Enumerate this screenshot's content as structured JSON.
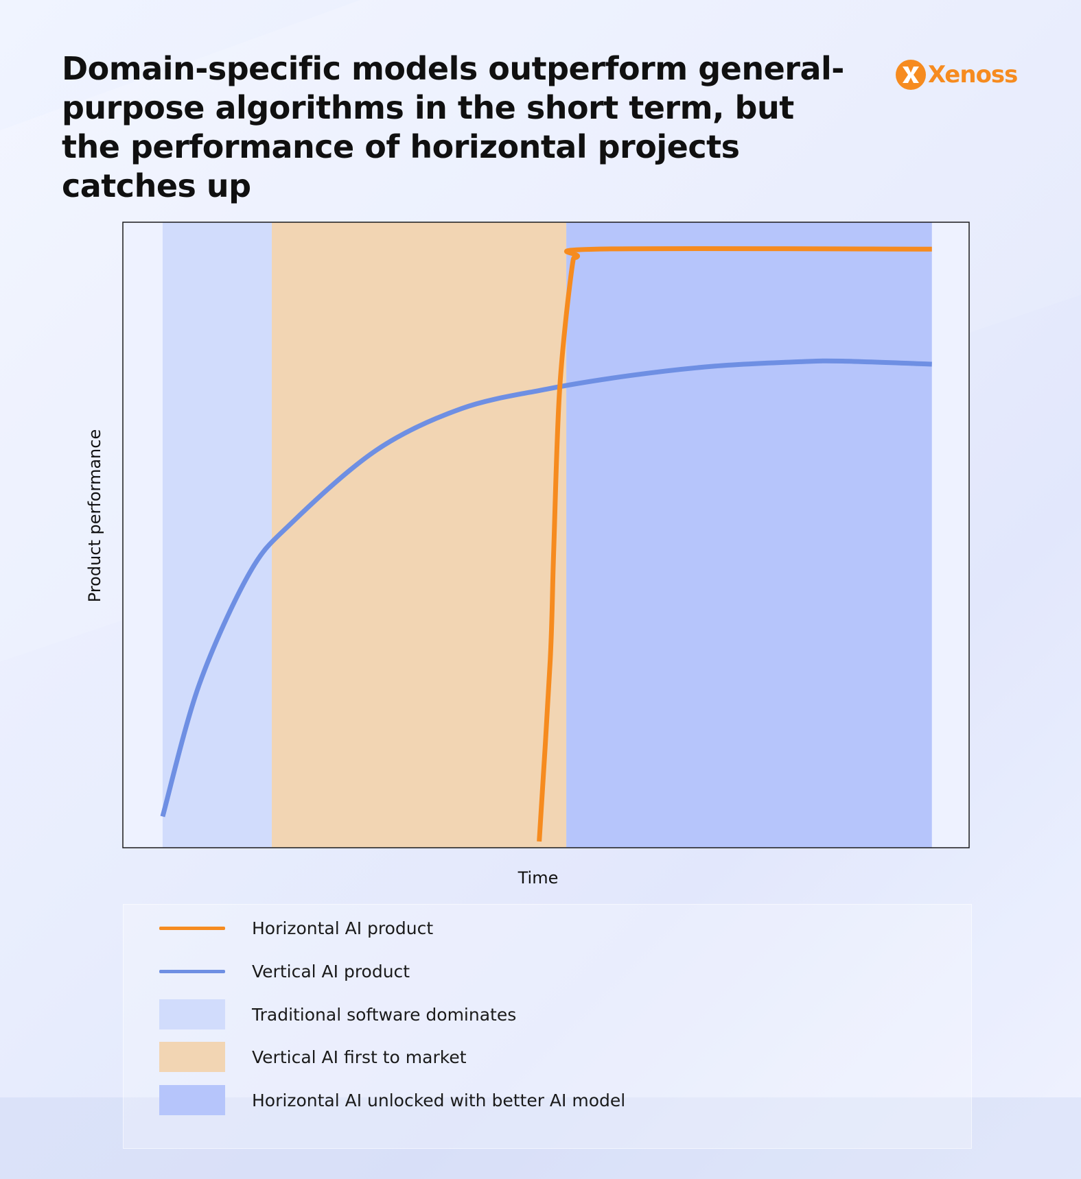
{
  "page": {
    "title": "Domain-specific models outperform general-purpose algorithms in the short term, but the performance of horizontal projects catches up",
    "logo_text": "Xenoss"
  },
  "colors": {
    "brand_orange": "#f68b1f",
    "horizontal_line": "#f68b1f",
    "vertical_line": "#6e8fe3",
    "traditional_region": "#d1dcfc",
    "vertical_first_region": "#f2d5b3",
    "horizontal_unlocked_region": "#b6c5fb"
  },
  "chart_data": {
    "type": "line",
    "xlabel": "Time",
    "ylabel": "Product performance",
    "xlim": [
      0,
      1
    ],
    "ylim": [
      0,
      1
    ],
    "grid": false,
    "show_ticks": false,
    "regions": [
      {
        "name": "Traditional software dominates",
        "start": 0.047,
        "end": 0.176,
        "color": "#d1dcfc"
      },
      {
        "name": "Vertical AI first to market",
        "start": 0.176,
        "end": 0.524,
        "color": "#f2d5b3"
      },
      {
        "name": "Horizontal AI unlocked with better AI model",
        "start": 0.524,
        "end": 0.956,
        "color": "#b6c5fb"
      }
    ],
    "series": [
      {
        "name": "Horizontal AI product",
        "color": "#f68b1f",
        "points": [
          [
            0.492,
            0.01
          ],
          [
            0.505,
            0.3
          ],
          [
            0.509,
            0.47
          ],
          [
            0.516,
            0.73
          ],
          [
            0.53,
            0.92
          ],
          [
            0.537,
            0.945
          ],
          [
            0.56,
            0.957
          ],
          [
            0.956,
            0.957
          ]
        ]
      },
      {
        "name": "Vertical AI product",
        "color": "#6e8fe3",
        "points": [
          [
            0.047,
            0.05
          ],
          [
            0.09,
            0.26
          ],
          [
            0.15,
            0.44
          ],
          [
            0.2,
            0.52
          ],
          [
            0.3,
            0.636
          ],
          [
            0.4,
            0.702
          ],
          [
            0.5,
            0.733
          ],
          [
            0.6,
            0.755
          ],
          [
            0.7,
            0.77
          ],
          [
            0.8,
            0.777
          ],
          [
            0.85,
            0.778
          ],
          [
            0.956,
            0.773
          ]
        ]
      }
    ],
    "legend": {
      "placement": "bottom",
      "entries": [
        {
          "label": "Horizontal AI product",
          "kind": "line",
          "color": "#f68b1f"
        },
        {
          "label": "Vertical AI product",
          "kind": "line",
          "color": "#6e8fe3"
        },
        {
          "label": "Traditional software dominates",
          "kind": "box",
          "color": "#d1dcfc"
        },
        {
          "label": "Vertical AI first to market",
          "kind": "box",
          "color": "#f2d5b3"
        },
        {
          "label": "Horizontal AI unlocked with better AI model",
          "kind": "box",
          "color": "#b6c5fb"
        }
      ]
    }
  }
}
